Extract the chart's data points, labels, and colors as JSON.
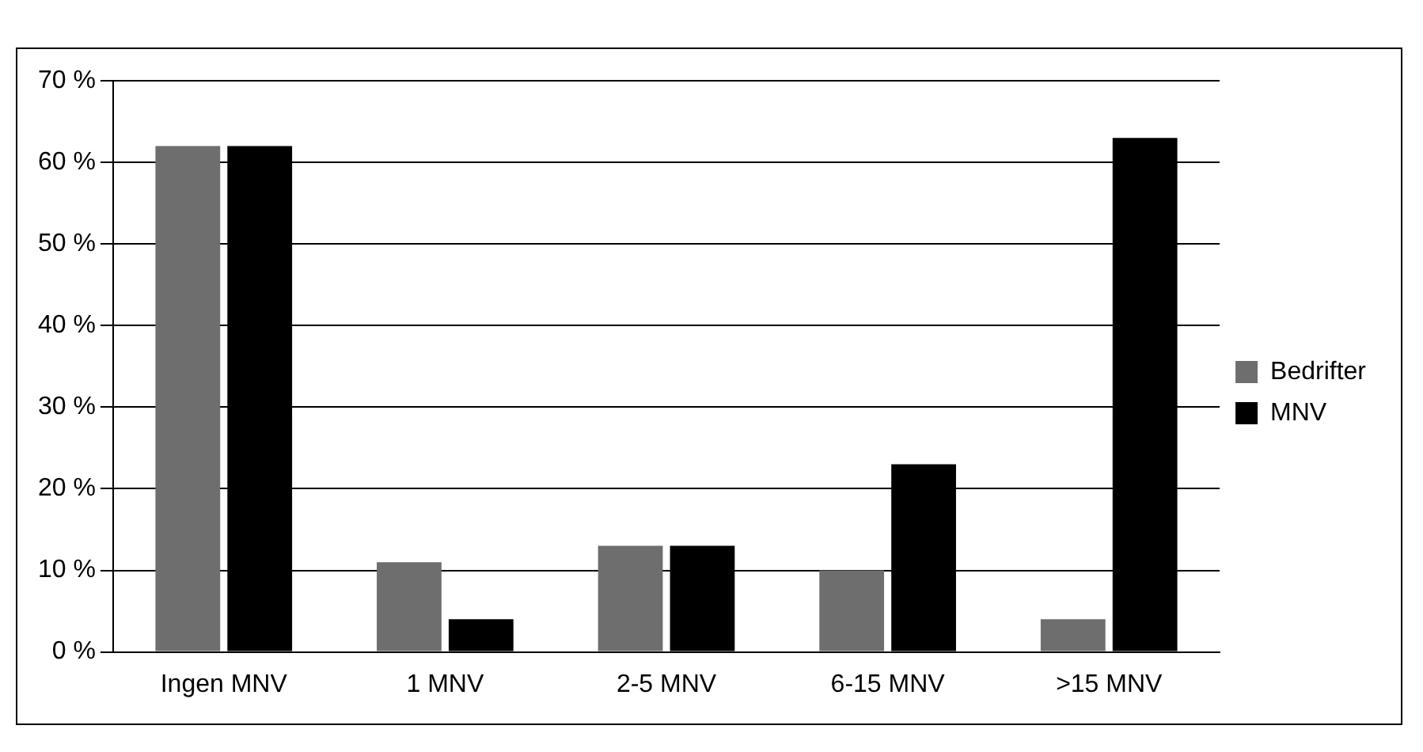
{
  "chart_data": {
    "type": "bar",
    "categories": [
      "Ingen MNV",
      "1 MNV",
      "2-5 MNV",
      "6-15 MNV",
      ">15 MNV"
    ],
    "series": [
      {
        "name": "Bedrifter",
        "color": "#6e6e6e",
        "values": [
          62,
          11,
          13,
          10,
          4
        ]
      },
      {
        "name": "MNV",
        "color": "#000000",
        "values": [
          62,
          4,
          13,
          23,
          63
        ]
      }
    ],
    "ylim": [
      0,
      70
    ],
    "yticks": [
      {
        "value": 0,
        "label": "0 %"
      },
      {
        "value": 10,
        "label": "10 %"
      },
      {
        "value": 20,
        "label": "20 %"
      },
      {
        "value": 30,
        "label": "30 %"
      },
      {
        "value": 40,
        "label": "40 %"
      },
      {
        "value": 50,
        "label": "50 %"
      },
      {
        "value": 60,
        "label": "60 %"
      },
      {
        "value": 70,
        "label": "70 %"
      }
    ],
    "grid": "y",
    "legend": "right"
  }
}
